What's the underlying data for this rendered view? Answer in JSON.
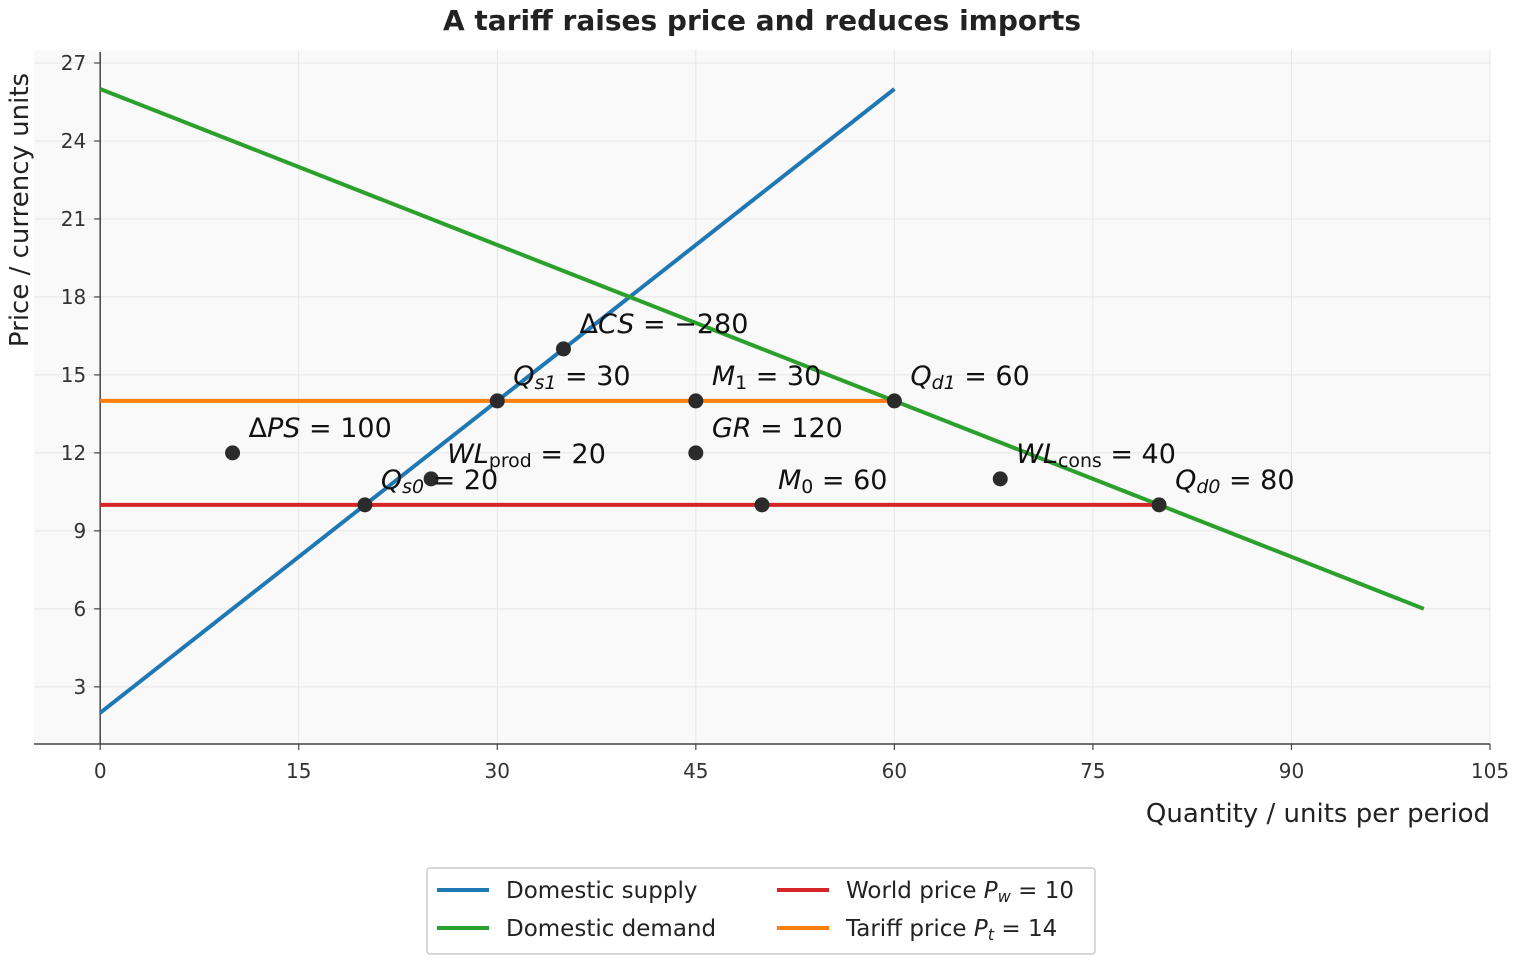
{
  "chart_data": {
    "type": "line",
    "title": "A tariff raises price and reduces imports",
    "xlabel": "Quantity / units per period",
    "ylabel": "Price / currency units",
    "xlim": [
      -5,
      105
    ],
    "ylim": [
      0.8,
      27.5
    ],
    "xticks": [
      0,
      15,
      30,
      45,
      60,
      75,
      90,
      105
    ],
    "yticks": [
      3,
      6,
      9,
      12,
      15,
      18,
      21,
      24,
      27
    ],
    "grid": true,
    "background": "#f9f9f9",
    "series": [
      {
        "name": "Domestic supply",
        "color": "#1f77b4",
        "points": [
          [
            0,
            2
          ],
          [
            60,
            26
          ]
        ]
      },
      {
        "name": "Domestic demand",
        "color": "#2ca02c",
        "points": [
          [
            0,
            26
          ],
          [
            100,
            6
          ]
        ]
      },
      {
        "name": "World price",
        "name_math": "P_w = 10",
        "color": "#d62728",
        "points": [
          [
            0,
            10
          ],
          [
            80,
            10
          ]
        ]
      },
      {
        "name": "Tariff price",
        "name_math": "P_t = 14",
        "color": "#ff7f0e",
        "points": [
          [
            0,
            14
          ],
          [
            60,
            14
          ]
        ]
      }
    ],
    "annotations": [
      {
        "x": 20,
        "y": 10,
        "label": [
          {
            "t": "Q",
            "i": true
          },
          {
            "t": "s0",
            "sub": true,
            "i": true
          },
          {
            "t": " = 20"
          }
        ]
      },
      {
        "x": 80,
        "y": 10,
        "label": [
          {
            "t": "Q",
            "i": true
          },
          {
            "t": "d0",
            "sub": true,
            "i": true
          },
          {
            "t": " = 80"
          }
        ]
      },
      {
        "x": 30,
        "y": 14,
        "label": [
          {
            "t": "Q",
            "i": true
          },
          {
            "t": "s1",
            "sub": true,
            "i": true
          },
          {
            "t": " = 30"
          }
        ]
      },
      {
        "x": 60,
        "y": 14,
        "label": [
          {
            "t": "Q",
            "i": true
          },
          {
            "t": "d1",
            "sub": true,
            "i": true
          },
          {
            "t": " = 60"
          }
        ]
      },
      {
        "x": 50,
        "y": 10,
        "label": [
          {
            "t": "M",
            "i": true
          },
          {
            "t": "0",
            "sub": true
          },
          {
            "t": " = 60"
          }
        ]
      },
      {
        "x": 45,
        "y": 14,
        "label": [
          {
            "t": "M",
            "i": true
          },
          {
            "t": "1",
            "sub": true
          },
          {
            "t": " = 30"
          }
        ]
      },
      {
        "x": 35,
        "y": 16,
        "label": [
          {
            "t": "Δ"
          },
          {
            "t": "CS",
            "i": true
          },
          {
            "t": " = −280"
          }
        ]
      },
      {
        "x": 10,
        "y": 12,
        "label": [
          {
            "t": "Δ"
          },
          {
            "t": "PS",
            "i": true
          },
          {
            "t": " = 100"
          }
        ]
      },
      {
        "x": 45,
        "y": 12,
        "label": [
          {
            "t": "GR",
            "i": true
          },
          {
            "t": " = 120"
          }
        ]
      },
      {
        "x": 25,
        "y": 11,
        "label": [
          {
            "t": "WL",
            "i": true
          },
          {
            "t": "prod",
            "sub": true
          },
          {
            "t": " = 20"
          }
        ]
      },
      {
        "x": 68,
        "y": 11,
        "label": [
          {
            "t": "WL",
            "i": true
          },
          {
            "t": "cons",
            "sub": true
          },
          {
            "t": " = 40"
          }
        ]
      }
    ],
    "legend": {
      "position": "bottom-center",
      "entries": [
        {
          "color": "#1f77b4",
          "label": [
            {
              "t": "Domestic supply"
            }
          ]
        },
        {
          "color": "#2ca02c",
          "label": [
            {
              "t": "Domestic demand"
            }
          ]
        },
        {
          "color": "#d62728",
          "label": [
            {
              "t": "World price "
            },
            {
              "t": "P",
              "i": true
            },
            {
              "t": "w",
              "sub": true,
              "i": true
            },
            {
              "t": " = 10"
            }
          ]
        },
        {
          "color": "#ff7f0e",
          "label": [
            {
              "t": "Tariff price "
            },
            {
              "t": "P",
              "i": true
            },
            {
              "t": "t",
              "sub": true,
              "i": true
            },
            {
              "t": " = 14"
            }
          ]
        }
      ]
    }
  }
}
